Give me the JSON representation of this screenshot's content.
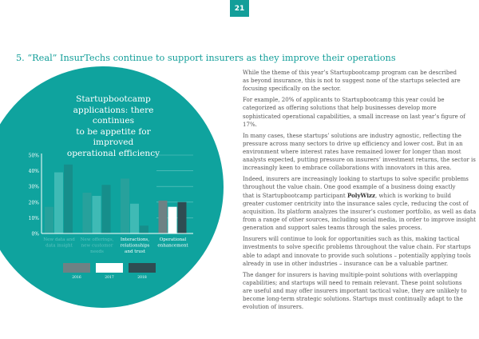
{
  "page_number": "21",
  "heading": "5. “Real” InsurTechs continue to support insurers as they improve their operations",
  "callout_title": [
    "Startupbootcamp",
    "applications: there continues",
    "to be appetite for improved",
    "operational efficiency"
  ],
  "paragraphs": [
    [
      [
        "While the theme of this year’s Startupbootcamp program can be described"
      ],
      [
        "as beyond insurance, this is not to suggest none of the startups selected are"
      ],
      [
        "focusing specifically on the sector."
      ]
    ],
    [
      [
        "For example, 20% of applicants to Startupbootcamp this year could be"
      ],
      [
        "categorized as offering solutions that help businesses develop more"
      ],
      [
        "sophisticated operational capabilities, a small increase on last year’s figure of"
      ],
      [
        "17%."
      ]
    ],
    [
      [
        "In many cases, these startups’ solutions are industry agnostic, reflecting the"
      ],
      [
        "pressure across many sectors to drive up efficiency and lower cost. But in an"
      ],
      [
        "environment where interest rates have remained lower for longer than most"
      ],
      [
        "analysts expected, putting pressure on insurers’ investment returns, the sector is"
      ],
      [
        "increasingly keen to embrace collaborations with innovators in this area."
      ]
    ],
    [
      [
        "Indeed, insurers are increasingly looking to startups to solve specific problems"
      ],
      [
        "throughout the value chain. One good example of a business doing exactly"
      ],
      [
        "that is Startupbootcamp participant ",
        "PolyWizz",
        ", which is working to build"
      ],
      [
        "greater customer centricity into the insurance sales cycle, reducing the cost of"
      ],
      [
        "acquisition. Its platform analyzes the insurer’s customer portfolio, as well as data"
      ],
      [
        "from a range of other sources, including social media, in order to improve insight"
      ],
      [
        "generation and support sales teams through the sales process."
      ]
    ],
    [
      [
        "Insurers will continue to look for opportunities such as this, making tactical"
      ],
      [
        "investments to solve specific problems throughout the value chain. For startups"
      ],
      [
        "able to adapt and innovate to provide such solutions – potentially applying tools"
      ],
      [
        "already in use in other industries – insurance can be a valuable partner."
      ]
    ],
    [
      [
        "The danger for insurers is having multiple-point solutions with overlapping"
      ],
      [
        "capabilities; and startups will need to remain relevant. These point solutions"
      ],
      [
        "are useful and may offer insurers important tactical value, they are unlikely to"
      ],
      [
        "become long-term strategic solutions. Startups must continually adapt to the"
      ],
      [
        "evolution of insurers."
      ]
    ]
  ],
  "chart_data": {
    "type": "bar",
    "categories": [
      [
        "New data and",
        "data insight"
      ],
      [
        "New offerings,",
        "new customer",
        "needs"
      ],
      [
        "Interactions,",
        "relationships",
        "and trust"
      ],
      [
        "Operational",
        "enhancement"
      ]
    ],
    "series": [
      {
        "name": "2016",
        "values": [
          17,
          26,
          35,
          21
        ]
      },
      {
        "name": "2017",
        "values": [
          39,
          24,
          19,
          17
        ]
      },
      {
        "name": "2018",
        "values": [
          44,
          31,
          5,
          20
        ]
      }
    ],
    "yticks": [
      "0%",
      "10%",
      "20%",
      "30%",
      "40%",
      "50%"
    ],
    "ylim": [
      0,
      50
    ],
    "highlighted_category": 3,
    "legend_position": "bottom",
    "colors": {
      "highlight": [
        "#6e8184",
        "#ffffff",
        "#2f4c52"
      ],
      "muted": [
        "#27a19c",
        "#3fbab5",
        "#168e8b"
      ],
      "muted_label": "#5fc4c0",
      "accent": "#129e99"
    }
  }
}
